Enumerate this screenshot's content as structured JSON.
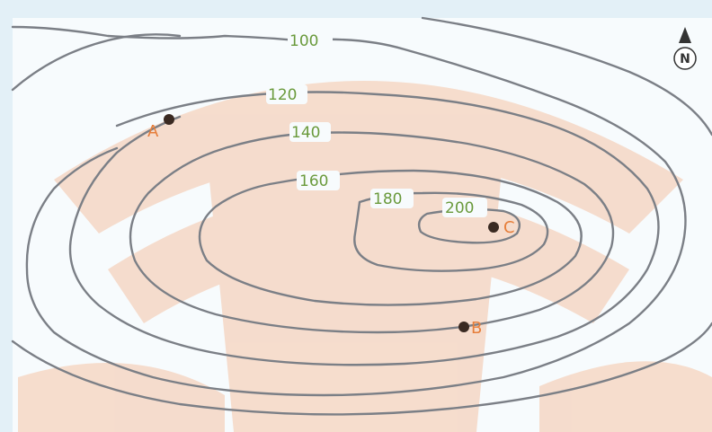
{
  "contour_labels": {
    "c100": "100",
    "c120": "120",
    "c140": "140",
    "c160": "160",
    "c180": "180",
    "c200": "200"
  },
  "points": {
    "a": "A",
    "b": "B",
    "c": "C"
  },
  "north_arrow": {
    "letter": "N",
    "icon": "north-arrow-icon"
  },
  "colors": {
    "contour_line": "#7b7f86",
    "contour_label": "#6a9a3c",
    "point_label": "#e67e3a",
    "point_marker": "#3a2a22",
    "map_background": "#e3f0f7"
  }
}
